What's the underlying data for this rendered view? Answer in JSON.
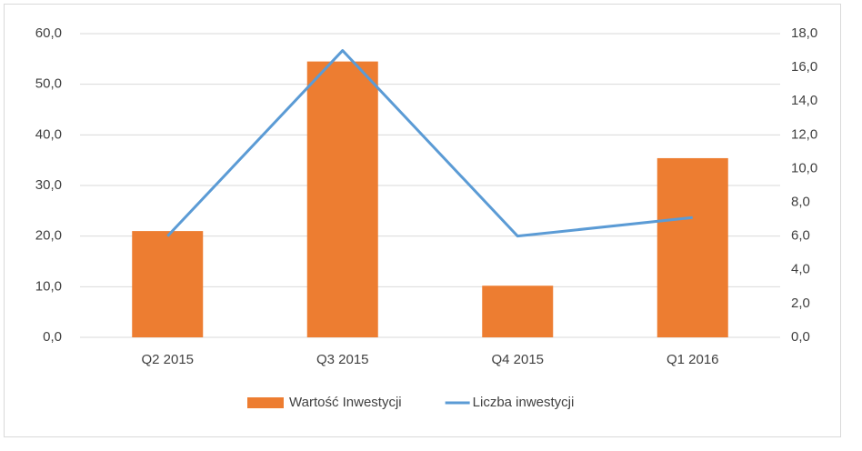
{
  "chart_data": {
    "type": "bar",
    "categories": [
      "Q2 2015",
      "Q3 2015",
      "Q4 2015",
      "Q1 2016"
    ],
    "series": [
      {
        "name": "Wartość Inwestycji",
        "type": "bar",
        "color": "#ed7d31",
        "values": [
          21.0,
          54.5,
          10.2,
          35.4
        ]
      },
      {
        "name": "Liczba inwestycji",
        "type": "line",
        "axis": "y2",
        "color": "#5b9bd5",
        "values": [
          6.0,
          17.0,
          6.0,
          7.1
        ]
      }
    ],
    "ylim": [
      0,
      60
    ],
    "yticks": [
      {
        "value": 0,
        "label": "0,0"
      },
      {
        "value": 10,
        "label": "10,0"
      },
      {
        "value": 20,
        "label": "20,0"
      },
      {
        "value": 30,
        "label": "30,0"
      },
      {
        "value": 40,
        "label": "40,0"
      },
      {
        "value": 50,
        "label": "50,0"
      },
      {
        "value": 60,
        "label": "60,0"
      }
    ],
    "y2lim": [
      0,
      18
    ],
    "y2ticks": [
      {
        "value": 0,
        "label": "0,0"
      },
      {
        "value": 2,
        "label": "2,0"
      },
      {
        "value": 4,
        "label": "4,0"
      },
      {
        "value": 6,
        "label": "6,0"
      },
      {
        "value": 8,
        "label": "8,0"
      },
      {
        "value": 10,
        "label": "10,0"
      },
      {
        "value": 12,
        "label": "12,0"
      },
      {
        "value": 14,
        "label": "14,0"
      },
      {
        "value": 16,
        "label": "16,0"
      },
      {
        "value": 18,
        "label": "18,0"
      }
    ],
    "grid": true,
    "legend": "bottom"
  }
}
